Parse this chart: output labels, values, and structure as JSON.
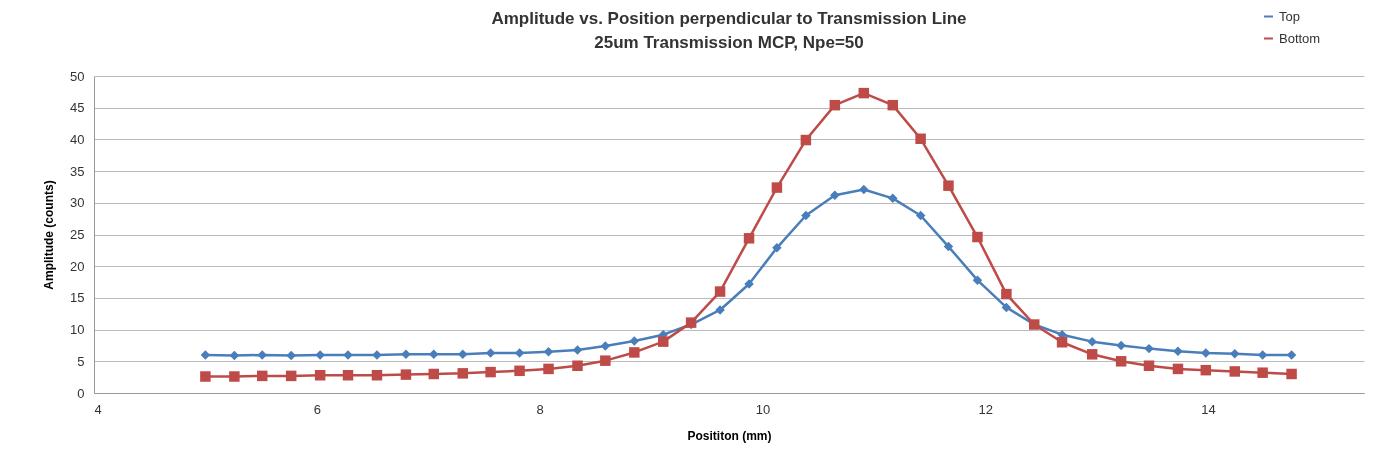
{
  "chart_data": {
    "type": "line",
    "title": [
      "Amplitude vs. Position perpendicular to Transmission Line",
      "25um Transmission MCP, Npe=50"
    ],
    "xlabel": "Posititon (mm)",
    "ylabel": "Amplitude (counts)",
    "x": [
      5.0,
      5.26,
      5.51,
      5.77,
      6.03,
      6.28,
      6.54,
      6.8,
      7.05,
      7.31,
      7.56,
      7.82,
      8.08,
      8.34,
      8.59,
      8.85,
      9.11,
      9.36,
      9.62,
      9.88,
      10.13,
      10.39,
      10.65,
      10.91,
      11.17,
      11.42,
      11.67,
      11.93,
      12.19,
      12.44,
      12.69,
      12.96,
      13.22,
      13.47,
      13.73,
      13.98,
      14.24,
      14.49,
      14.75
    ],
    "series": [
      {
        "name": "Top",
        "color": "#4a7ebb",
        "marker": "diamond",
        "values": [
          6.0,
          5.9,
          6.0,
          5.9,
          6.0,
          6.0,
          6.0,
          6.1,
          6.1,
          6.1,
          6.3,
          6.3,
          6.5,
          6.8,
          7.4,
          8.2,
          9.2,
          10.8,
          13.1,
          17.2,
          22.9,
          28.0,
          31.2,
          32.1,
          30.7,
          28.0,
          23.1,
          17.8,
          13.5,
          10.8,
          9.2,
          8.1,
          7.5,
          7.0,
          6.6,
          6.3,
          6.2,
          6.0,
          6.0
        ]
      },
      {
        "name": "Bottom",
        "color": "#be4b48",
        "marker": "square",
        "values": [
          2.6,
          2.6,
          2.7,
          2.7,
          2.8,
          2.8,
          2.8,
          2.9,
          3.0,
          3.1,
          3.3,
          3.5,
          3.8,
          4.3,
          5.1,
          6.4,
          8.1,
          11.1,
          16.0,
          24.4,
          32.4,
          39.9,
          45.4,
          47.3,
          45.4,
          40.1,
          32.7,
          24.6,
          15.6,
          10.8,
          8.0,
          6.1,
          5.0,
          4.3,
          3.8,
          3.6,
          3.4,
          3.2,
          3.0
        ]
      }
    ],
    "xlim": [
      4,
      15.4
    ],
    "xticks": [
      4,
      6,
      8,
      10,
      12,
      14
    ],
    "ylim": [
      0,
      50
    ],
    "yticks": [
      0,
      5,
      10,
      15,
      20,
      25,
      30,
      35,
      40,
      45,
      50
    ],
    "grid": "y",
    "legend": "top right",
    "line_style": "solid"
  }
}
